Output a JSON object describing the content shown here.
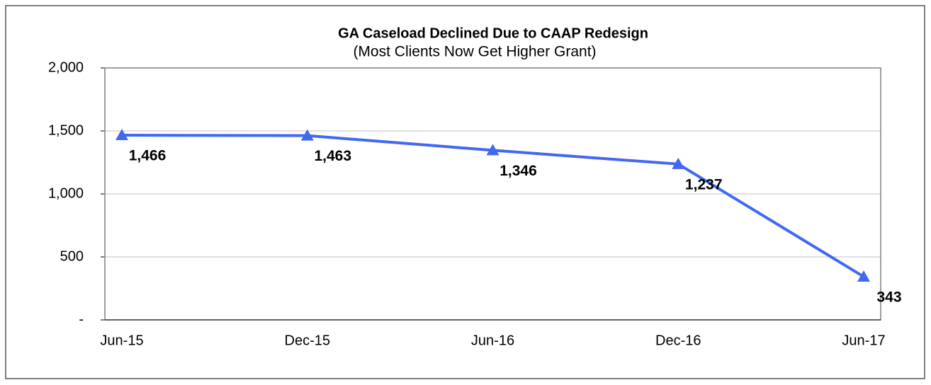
{
  "chart_data": {
    "type": "line",
    "title": "GA Caseload Declined Due to CAAP Redesign",
    "subtitle": "(Most Clients Now Get Higher Grant)",
    "categories": [
      "Jun-15",
      "Dec-15",
      "Jun-16",
      "Dec-16",
      "Jun-17"
    ],
    "values": [
      1466,
      1463,
      1346,
      1237,
      343
    ],
    "value_labels": [
      "1,466",
      "1,463",
      "1,346",
      "1,237",
      "343"
    ],
    "color": "#4169f0",
    "ylim": [
      0,
      2000
    ],
    "yticks": [
      {
        "value": 0,
        "label": "-"
      },
      500,
      {
        "value": 1000,
        "label": "1,000"
      },
      {
        "value": 1500,
        "label": "1,500"
      },
      {
        "value": 2000,
        "label": "2,000"
      }
    ],
    "grid": true
  }
}
